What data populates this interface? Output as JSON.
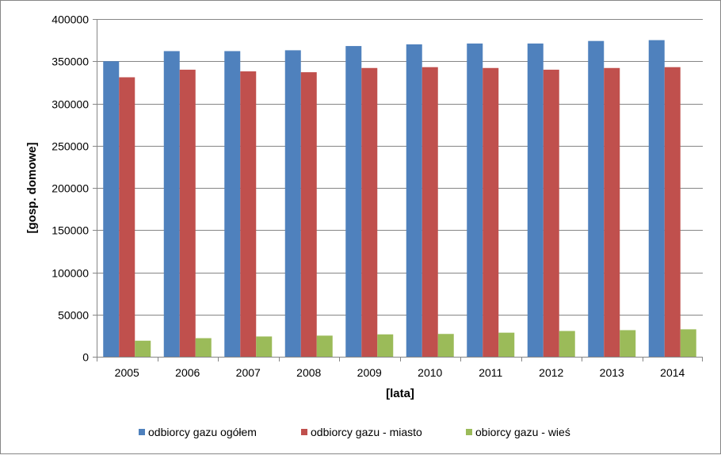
{
  "chart_data": {
    "type": "bar",
    "categories": [
      "2005",
      "2006",
      "2007",
      "2008",
      "2009",
      "2010",
      "2011",
      "2012",
      "2013",
      "2014"
    ],
    "series": [
      {
        "name": "odbiorcy gazu ogółem",
        "color": "#4F81BD",
        "values": [
          350000,
          362000,
          362000,
          363000,
          368000,
          370000,
          371000,
          371000,
          374000,
          375000
        ]
      },
      {
        "name": "odbiorcy gazu - miasto",
        "color": "#C0504D",
        "values": [
          331000,
          340000,
          338000,
          337000,
          342000,
          343000,
          342000,
          340000,
          342000,
          343000
        ]
      },
      {
        "name": "obiorcy gazu - wieś",
        "color": "#9BBB59",
        "values": [
          19000,
          22000,
          24000,
          25000,
          26500,
          27000,
          28500,
          30500,
          31500,
          32500
        ]
      }
    ],
    "xlabel": "[lata]",
    "ylabel": "[gosp. domowe]",
    "ylim": [
      0,
      400000
    ],
    "yticks": [
      0,
      50000,
      100000,
      150000,
      200000,
      250000,
      300000,
      350000,
      400000
    ],
    "ytick_labels": [
      "0",
      "50000",
      "100000",
      "150000",
      "200000",
      "250000",
      "300000",
      "350000",
      "400000"
    ],
    "grid": true,
    "legend_position": "bottom"
  }
}
